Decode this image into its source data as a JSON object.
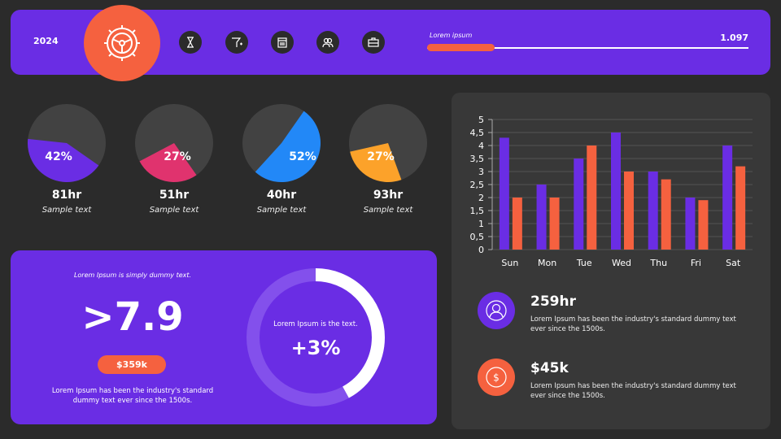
{
  "header": {
    "year": "2024",
    "icons": [
      "gear-steering-icon",
      "hourglass-icon",
      "funnel-icon",
      "calendar-icon",
      "users-icon",
      "toolbox-icon"
    ],
    "progress_label": "Lorem ipsum",
    "progress_value": "1.097",
    "progress_fill": 0.21
  },
  "pies": [
    {
      "percent": 42,
      "pct_label": "42%",
      "hours": "81hr",
      "caption": "Sample text",
      "color": "#6a2de4"
    },
    {
      "percent": 27,
      "pct_label": "27%",
      "hours": "51hr",
      "caption": "Sample text",
      "color": "#e0336e"
    },
    {
      "percent": 52,
      "pct_label": "52%",
      "hours": "40hr",
      "caption": "Sample text",
      "color": "#2288f7"
    },
    {
      "percent": 27,
      "pct_label": "27%",
      "hours": "93hr",
      "caption": "Sample text",
      "color": "#fca22a"
    }
  ],
  "summary": {
    "top_text": "Lorem Ipsum is simply dummy text.",
    "big_value": ">7.9",
    "badge": "$359k",
    "bottom_text": "Lorem Ipsum has been the industry's standard dummy text ever since the 1500s.",
    "ring_text": "Lorem Ipsum is the text.",
    "ring_value": "+3%",
    "ring_fill": 0.42
  },
  "chart_data": {
    "type": "bar",
    "categories": [
      "Sun",
      "Mon",
      "Tue",
      "Wed",
      "Thu",
      "Fri",
      "Sat"
    ],
    "series": [
      {
        "values": [
          4.3,
          2.5,
          3.5,
          4.5,
          3,
          2,
          4
        ],
        "color": "#6a2de4"
      },
      {
        "values": [
          2,
          2,
          4,
          3,
          2.7,
          1.9,
          3.2
        ],
        "color": "#f5613f"
      }
    ],
    "yticks": [
      "0",
      "0,5",
      "1",
      "1,5",
      "2",
      "2,5",
      "3",
      "3,5",
      "4",
      "4,5",
      "5"
    ],
    "ylim": [
      0,
      5
    ],
    "grid": true
  },
  "stats": [
    {
      "value": "259hr",
      "text": "Lorem Ipsum has been the industry's standard dummy text ever since the 1500s.",
      "icon": "user-icon",
      "color": "#6a2de4"
    },
    {
      "value": "$45k",
      "text": "Lorem Ipsum has been the industry's standard dummy text ever since the 1500s.",
      "icon": "dollar-icon",
      "color": "#f5613f"
    }
  ]
}
